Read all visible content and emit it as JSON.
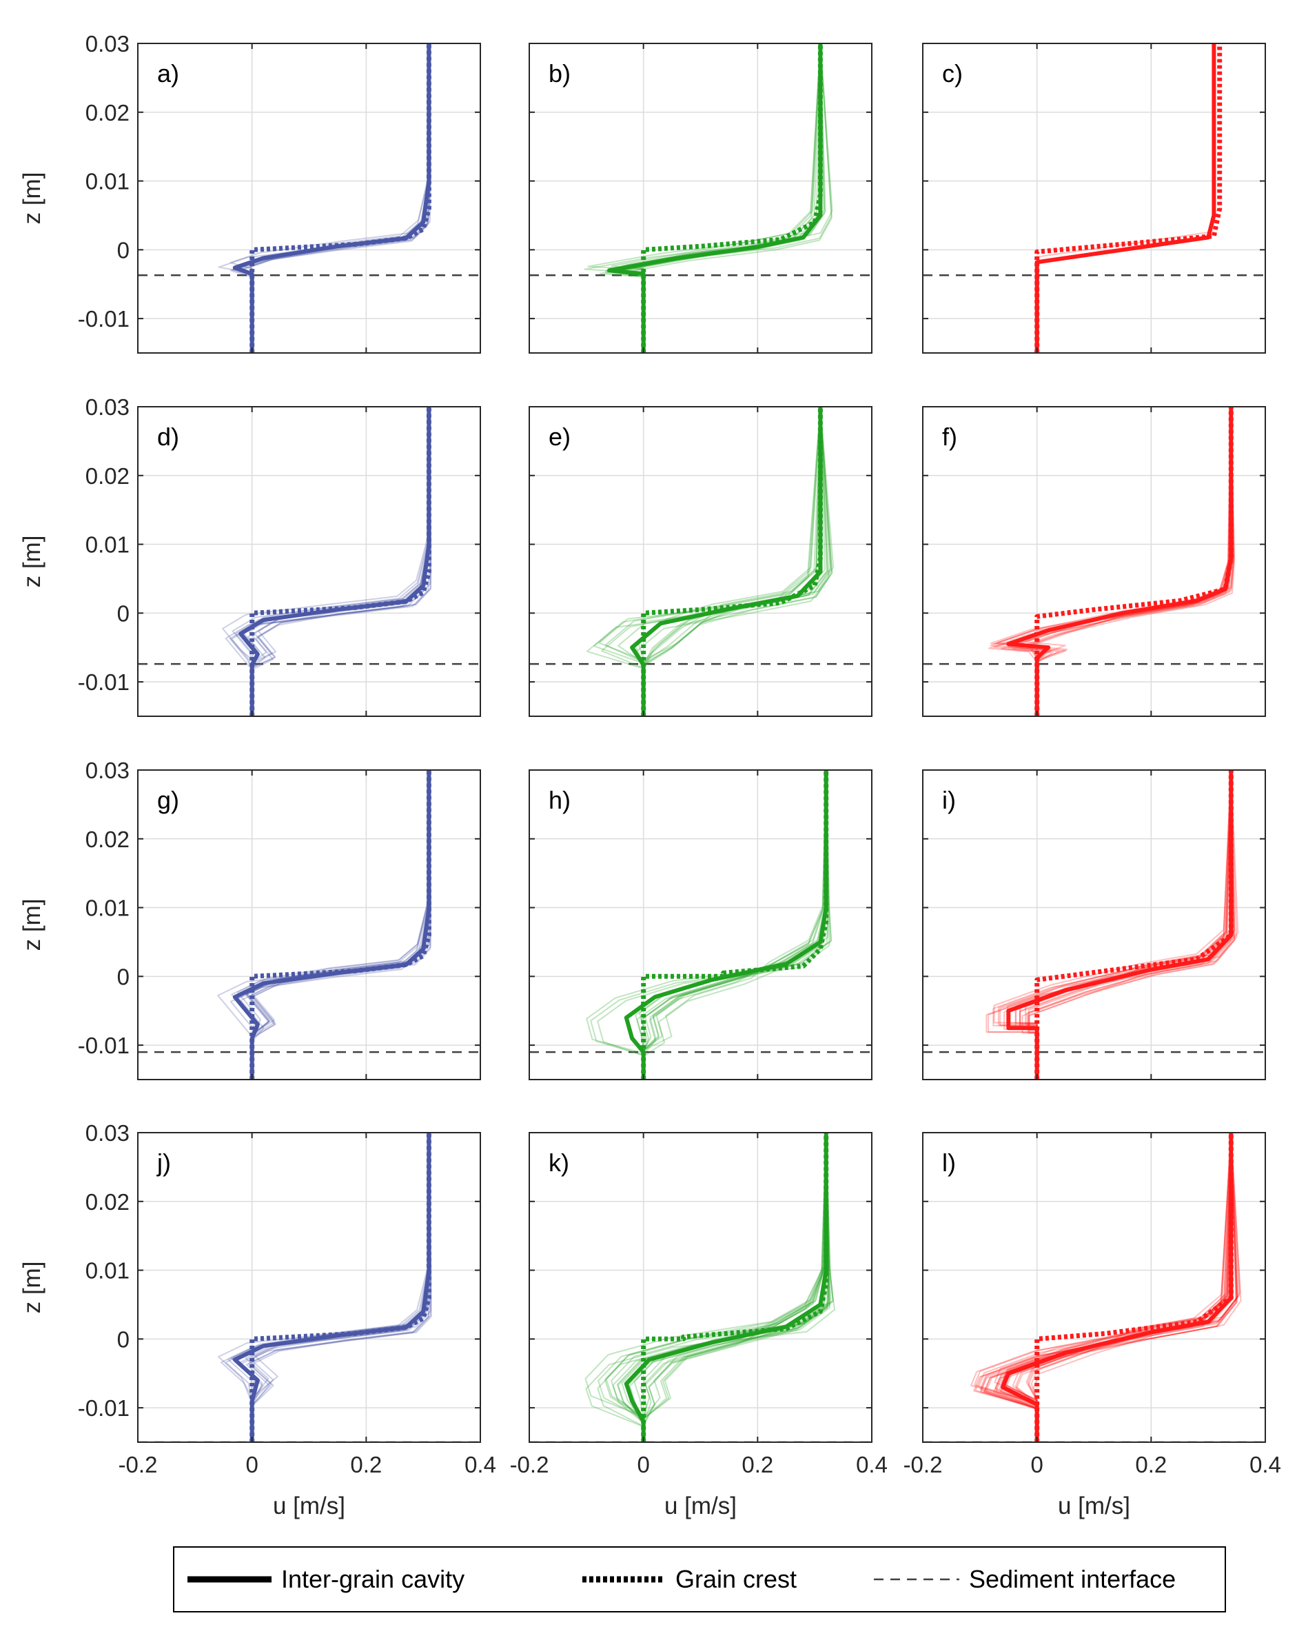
{
  "chart_data": {
    "type": "line",
    "layout": "4 rows x 3 columns small multiples",
    "xlabel": "u [m/s]",
    "ylabel": "z [m]",
    "xlim": [
      -0.2,
      0.4
    ],
    "ylim": [
      -0.015,
      0.03
    ],
    "xticks": [
      -0.2,
      0,
      0.2,
      0.4
    ],
    "xtick_labels": [
      "-0.2",
      "0",
      "0.2",
      "0.4"
    ],
    "yticks": [
      -0.01,
      0,
      0.01,
      0.02,
      0.03
    ],
    "ytick_labels": [
      "-0.01",
      "0",
      "0.01",
      "0.02",
      "0.03"
    ],
    "grid": true,
    "column_colors": [
      "#4a57a6",
      "#20a020",
      "#ff1a1a"
    ],
    "legend": {
      "placement": "bottom",
      "entries": [
        {
          "label": "Inter-grain cavity",
          "style": "solid-thick"
        },
        {
          "label": "Grain crest",
          "style": "dotted-thick"
        },
        {
          "label": "Sediment interface",
          "style": "dashed-thin"
        }
      ]
    },
    "panels": [
      {
        "label": "a)",
        "row": 0,
        "col": 0,
        "u_free": 0.31,
        "interface": -0.0037,
        "ens_count": 12,
        "ens_spread": 0.03,
        "cavity": {
          "x": [
            0,
            0,
            -0.03,
            0.02,
            0.15,
            0.27,
            0.3,
            0.31,
            0.31
          ],
          "y": [
            -0.015,
            -0.0035,
            -0.0026,
            -0.0012,
            0.0005,
            0.0017,
            0.004,
            0.01,
            0.03
          ]
        },
        "crest": {
          "x": [
            0,
            0,
            0.05,
            0.18,
            0.27,
            0.3,
            0.31,
            0.31
          ],
          "y": [
            -0.015,
            0,
            0.0002,
            0.0008,
            0.0017,
            0.003,
            0.006,
            0.03
          ]
        }
      },
      {
        "label": "b)",
        "row": 0,
        "col": 1,
        "u_free": 0.31,
        "interface": -0.0037,
        "ens_count": 14,
        "ens_spread": 0.06,
        "cavity": {
          "x": [
            0,
            0,
            -0.06,
            0.06,
            0.2,
            0.28,
            0.31,
            0.31
          ],
          "y": [
            -0.015,
            -0.0035,
            -0.003,
            -0.0012,
            0.0004,
            0.0018,
            0.005,
            0.03
          ]
        },
        "crest": {
          "x": [
            0,
            0,
            0.1,
            0.24,
            0.3,
            0.31,
            0.31
          ],
          "y": [
            -0.015,
            0,
            0.0005,
            0.0015,
            0.004,
            0.008,
            0.03
          ]
        }
      },
      {
        "label": "c)",
        "row": 0,
        "col": 2,
        "u_free": 0.31,
        "interface": -0.0037,
        "ens_count": 3,
        "ens_spread": 0.005,
        "cavity": {
          "x": [
            0,
            0,
            0.3,
            0.31,
            0.31
          ],
          "y": [
            -0.015,
            -0.0018,
            0.0018,
            0.005,
            0.03
          ]
        },
        "crest": {
          "x": [
            0,
            0,
            0.31,
            0.32,
            0.32
          ],
          "y": [
            -0.015,
            -0.0003,
            0.002,
            0.006,
            0.03
          ]
        }
      },
      {
        "label": "d)",
        "row": 1,
        "col": 0,
        "u_free": 0.31,
        "interface": -0.0074,
        "ens_count": 14,
        "ens_spread": 0.035,
        "cavity": {
          "x": [
            0,
            0,
            0.01,
            -0.02,
            0.02,
            0.15,
            0.27,
            0.3,
            0.31,
            0.31
          ],
          "y": [
            -0.015,
            -0.0075,
            -0.006,
            -0.003,
            -0.001,
            0.0005,
            0.0017,
            0.004,
            0.01,
            0.03
          ]
        },
        "crest": {
          "x": [
            0,
            0,
            0.05,
            0.18,
            0.27,
            0.3,
            0.31,
            0.31
          ],
          "y": [
            -0.015,
            0,
            0.0002,
            0.0008,
            0.0017,
            0.003,
            0.006,
            0.03
          ]
        }
      },
      {
        "label": "e)",
        "row": 1,
        "col": 1,
        "u_free": 0.31,
        "interface": -0.0074,
        "ens_count": 18,
        "ens_spread": 0.08,
        "cavity": {
          "x": [
            0,
            0,
            -0.02,
            0.03,
            0.15,
            0.27,
            0.31,
            0.31
          ],
          "y": [
            -0.015,
            -0.0075,
            -0.005,
            -0.0015,
            0.0006,
            0.0025,
            0.006,
            0.03
          ]
        },
        "crest": {
          "x": [
            0,
            0,
            0.1,
            0.24,
            0.3,
            0.31,
            0.31
          ],
          "y": [
            -0.015,
            0,
            0.0005,
            0.0015,
            0.004,
            0.008,
            0.03
          ]
        }
      },
      {
        "label": "f)",
        "row": 1,
        "col": 2,
        "u_free": 0.34,
        "interface": -0.0074,
        "ens_count": 14,
        "ens_spread": 0.035,
        "cavity": {
          "x": [
            0,
            0,
            0.02,
            -0.05,
            0.02,
            0.15,
            0.28,
            0.33,
            0.34,
            0.34
          ],
          "y": [
            -0.015,
            -0.0065,
            -0.005,
            -0.0045,
            -0.0025,
            0,
            0.0018,
            0.0035,
            0.008,
            0.03
          ]
        },
        "crest": {
          "x": [
            0,
            0,
            0.1,
            0.25,
            0.33,
            0.34,
            0.34
          ],
          "y": [
            -0.015,
            -0.0005,
            0.0005,
            0.0018,
            0.0035,
            0.008,
            0.03
          ]
        }
      },
      {
        "label": "g)",
        "row": 2,
        "col": 0,
        "u_free": 0.31,
        "interface": -0.011,
        "ens_count": 14,
        "ens_spread": 0.035,
        "cavity": {
          "x": [
            0,
            0,
            0.01,
            -0.03,
            0.02,
            0.15,
            0.27,
            0.3,
            0.31,
            0.31
          ],
          "y": [
            -0.015,
            -0.009,
            -0.007,
            -0.003,
            -0.001,
            0.0005,
            0.0017,
            0.004,
            0.01,
            0.03
          ]
        },
        "crest": {
          "x": [
            0,
            0,
            0.05,
            0.18,
            0.27,
            0.3,
            0.31,
            0.31
          ],
          "y": [
            -0.015,
            0,
            0.0002,
            0.0008,
            0.0017,
            0.003,
            0.006,
            0.03
          ]
        }
      },
      {
        "label": "h)",
        "row": 2,
        "col": 1,
        "u_free": 0.32,
        "interface": -0.011,
        "ens_count": 16,
        "ens_spread": 0.07,
        "cavity": {
          "x": [
            0,
            0,
            -0.02,
            -0.03,
            0.02,
            0.12,
            0.25,
            0.31,
            0.32,
            0.32
          ],
          "y": [
            -0.015,
            -0.011,
            -0.009,
            -0.006,
            -0.003,
            -0.0005,
            0.0018,
            0.005,
            0.01,
            0.03
          ]
        },
        "crest": {
          "x": [
            0,
            0,
            0.14,
            0.14,
            0.28,
            0.31,
            0.32,
            0.32
          ],
          "y": [
            -0.015,
            0,
            0,
            0.0005,
            0.0015,
            0.004,
            0.008,
            0.03
          ]
        }
      },
      {
        "label": "i)",
        "row": 2,
        "col": 2,
        "u_free": 0.34,
        "interface": -0.011,
        "ens_count": 20,
        "ens_spread": 0.045,
        "cavity": {
          "x": [
            0,
            0,
            -0.05,
            -0.05,
            0.05,
            0.2,
            0.3,
            0.34,
            0.34
          ],
          "y": [
            -0.015,
            -0.0075,
            -0.0075,
            -0.005,
            -0.002,
            0.001,
            0.0025,
            0.006,
            0.03
          ]
        },
        "crest": {
          "x": [
            0,
            0,
            0.12,
            0.28,
            0.34,
            0.34
          ],
          "y": [
            -0.015,
            -0.0005,
            0.0008,
            0.0025,
            0.006,
            0.03
          ]
        }
      },
      {
        "label": "j)",
        "row": 3,
        "col": 0,
        "u_free": 0.31,
        "interface": -0.015,
        "ens_count": 14,
        "ens_spread": 0.035,
        "cavity": {
          "x": [
            0,
            0,
            0.01,
            -0.03,
            0.02,
            0.15,
            0.27,
            0.3,
            0.31,
            0.31
          ],
          "y": [
            -0.015,
            -0.009,
            -0.006,
            -0.003,
            -0.001,
            0.0005,
            0.0017,
            0.004,
            0.01,
            0.03
          ]
        },
        "crest": {
          "x": [
            0,
            0,
            0.05,
            0.18,
            0.27,
            0.3,
            0.31,
            0.31
          ],
          "y": [
            -0.015,
            0,
            0.0002,
            0.0008,
            0.0017,
            0.003,
            0.006,
            0.03
          ]
        }
      },
      {
        "label": "k)",
        "row": 3,
        "col": 1,
        "u_free": 0.32,
        "interface": -0.015,
        "ens_count": 24,
        "ens_spread": 0.08,
        "cavity": {
          "x": [
            0,
            0,
            -0.02,
            -0.03,
            0.01,
            0.12,
            0.25,
            0.31,
            0.32,
            0.32
          ],
          "y": [
            -0.015,
            -0.012,
            -0.009,
            -0.0065,
            -0.003,
            -0.0005,
            0.0018,
            0.005,
            0.01,
            0.03
          ]
        },
        "crest": {
          "x": [
            0,
            0,
            0.07,
            0.07,
            0.25,
            0.31,
            0.32,
            0.32
          ],
          "y": [
            -0.015,
            0,
            0,
            0.0003,
            0.0015,
            0.004,
            0.008,
            0.03
          ]
        }
      },
      {
        "label": "l)",
        "row": 3,
        "col": 2,
        "u_free": 0.34,
        "interface": -0.015,
        "ens_count": 30,
        "ens_spread": 0.06,
        "cavity": {
          "x": [
            0,
            0,
            -0.06,
            -0.05,
            0.05,
            0.2,
            0.3,
            0.34,
            0.34
          ],
          "y": [
            -0.015,
            -0.0095,
            -0.007,
            -0.005,
            -0.002,
            0.001,
            0.0025,
            0.006,
            0.03
          ]
        },
        "crest": {
          "x": [
            0,
            0,
            0.12,
            0.28,
            0.34,
            0.34
          ],
          "y": [
            -0.015,
            0,
            0.0008,
            0.0025,
            0.006,
            0.03
          ]
        }
      }
    ]
  }
}
